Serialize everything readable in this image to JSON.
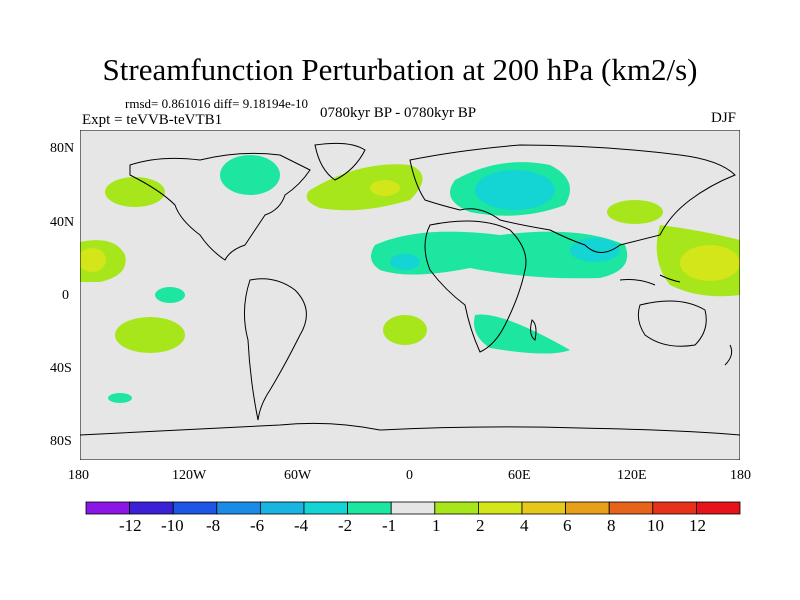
{
  "title": "Streamfunction Perturbation at 200 hPa (km2/s)",
  "stats": "rmsd= 0.861016 diff= 9.18194e-10",
  "experiment": "Expt = teVVB-teVTB1",
  "period": "0780kyr BP - 0780kyr BP",
  "season": "DJF",
  "lat_labels": [
    "80N",
    "40N",
    "0",
    "40S",
    "80S"
  ],
  "lon_labels": [
    "180",
    "120W",
    "60W",
    "0",
    "60E",
    "120E",
    "180"
  ],
  "colorbar": {
    "labels": [
      "-12",
      "-10",
      "-8",
      "-6",
      "-4",
      "-2",
      "-1",
      "1",
      "2",
      "4",
      "6",
      "8",
      "10",
      "12"
    ],
    "colors": [
      "#8a17e6",
      "#3b20d6",
      "#1f55e6",
      "#1b8be6",
      "#19b4e0",
      "#14d4d4",
      "#1de6a0",
      "#e6e6e6",
      "#a6e61a",
      "#d2e61a",
      "#e6c81a",
      "#e6a01a",
      "#e6641a",
      "#e6321a",
      "#e6141a"
    ]
  },
  "map": {
    "contour_colors": {
      "c1": "#1de6a0",
      "c2": "#14d4d4",
      "w1": "#a6e61a",
      "w2": "#d2e61a",
      "land": "#e6e6e6"
    }
  }
}
